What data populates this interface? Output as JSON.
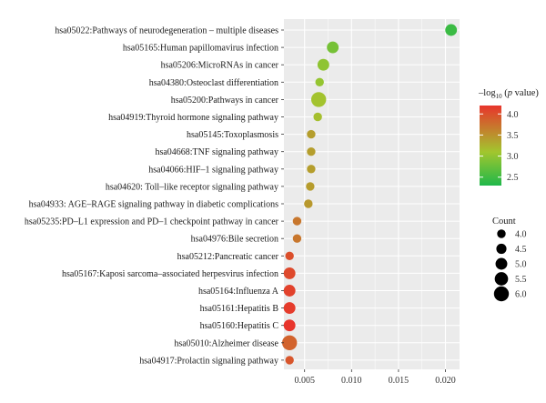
{
  "chart_data": {
    "type": "scatter",
    "title": "",
    "xlabel": "",
    "ylabel": "",
    "xlim": [
      0.0028,
      0.0215
    ],
    "x_ticks": [
      0.005,
      0.01,
      0.015,
      0.02
    ],
    "x_tick_labels": [
      "0.005",
      "0.010",
      "0.015",
      "0.020"
    ],
    "grid": true,
    "legend_position": "right",
    "categories": [
      "hsa05022:Pathways of neurodegeneration – multiple diseases",
      "hsa05165:Human papillomavirus infection",
      "hsa05206:MicroRNAs in cancer",
      "hsa04380:Osteoclast differentiation",
      "hsa05200:Pathways in cancer",
      "hsa04919:Thyroid hormone signaling pathway",
      "hsa05145:Toxoplasmosis",
      "hsa04668:TNF signaling pathway",
      "hsa04066:HIF–1 signaling pathway",
      "hsa04620: Toll–like receptor signaling pathway",
      "hsa04933: AGE–RAGE signaling pathway in diabetic complications",
      "hsa05235:PD–L1 expression and PD–1 checkpoint pathway in cancer",
      "hsa04976:Bile secretion",
      "hsa05212:Pancreatic cancer",
      "hsa05167:Kaposi sarcoma–associated herpesvirus infection",
      "hsa05164:Influenza A",
      "hsa05161:Hepatitis B",
      "hsa05160:Hepatitis C",
      "hsa05010:Alzheimer disease",
      "hsa04917:Prolactin signaling pathway"
    ],
    "series": [
      {
        "x": [
          0.0206,
          0.008,
          0.007,
          0.0066,
          0.0065,
          0.0064,
          0.0057,
          0.0057,
          0.0057,
          0.0056,
          0.0054,
          0.0042,
          0.0042,
          0.0034,
          0.0034,
          0.0034,
          0.0034,
          0.0034,
          0.0034,
          0.0034
        ],
        "count": [
          5,
          5,
          5,
          4,
          6,
          4,
          4,
          4,
          4,
          4,
          4,
          4,
          4,
          4,
          5,
          5,
          5,
          5,
          6,
          4
        ],
        "neglog10p": [
          2.47,
          2.83,
          2.98,
          3.02,
          3.12,
          3.15,
          3.4,
          3.4,
          3.4,
          3.42,
          3.45,
          3.7,
          3.7,
          4.0,
          4.05,
          4.1,
          4.15,
          4.2,
          3.85,
          3.95
        ]
      }
    ],
    "color_legend": {
      "title_prefix": "–log",
      "title_sub": "10",
      "title_open": " (",
      "title_italic": "p",
      "title_close": " value)",
      "range": [
        2.3,
        4.2
      ],
      "ticks": [
        2.5,
        3.0,
        3.5,
        4.0
      ],
      "tick_labels": [
        "2.5",
        "3.0",
        "3.5",
        "4.0"
      ],
      "low_color": "#1fb84a",
      "mid_color": "#a2c62e",
      "high_color": "#e8352c"
    },
    "size_legend": {
      "title": "Count",
      "values": [
        4.0,
        4.5,
        5.0,
        5.5,
        6.0
      ],
      "labels": [
        "4.0",
        "4.5",
        "5.0",
        "5.5",
        "6.0"
      ]
    },
    "colors": {
      "panel_bg": "#ebebeb",
      "grid": "#ffffff"
    }
  }
}
